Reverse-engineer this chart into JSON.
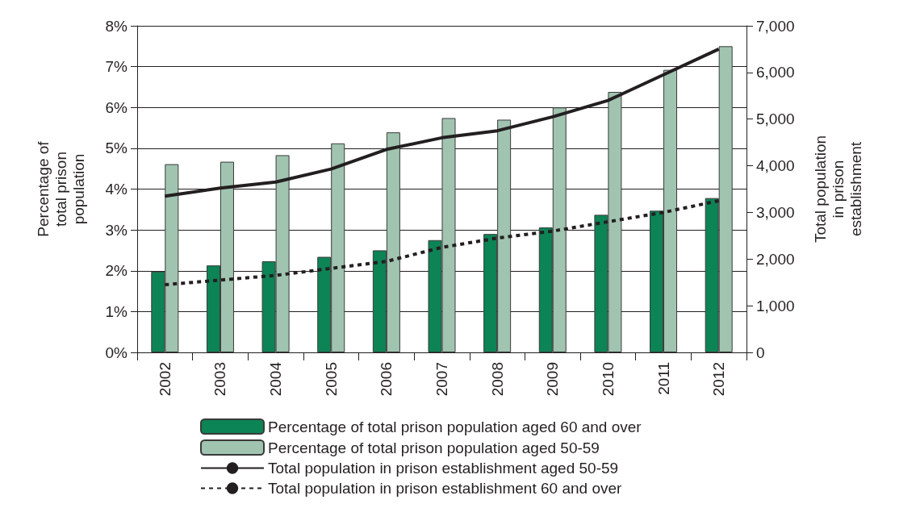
{
  "chart_data": {
    "type": "bar",
    "ylabel": "Percentage of total prison population",
    "y2label": "Total population in prison establishment",
    "categories": [
      "2002",
      "2003",
      "2004",
      "2005",
      "2006",
      "2007",
      "2008",
      "2009",
      "2010",
      "2011",
      "2012"
    ],
    "series": [
      {
        "name": "Percentage of total prison population aged 60 and over",
        "color": "#0d8456",
        "values": [
          1.98,
          2.13,
          2.23,
          2.34,
          2.5,
          2.75,
          2.9,
          3.06,
          3.37,
          3.47,
          3.78
        ]
      },
      {
        "name": "Percentage of total prison population aged 50-59",
        "color": "#a0c4b0",
        "values": [
          4.61,
          4.67,
          4.83,
          5.12,
          5.39,
          5.74,
          5.7,
          6.0,
          6.38,
          6.92,
          7.5
        ]
      },
      {
        "name": "Total population in prison establishment aged 50-59",
        "type": "line",
        "axis": "y2",
        "color": "#231f20",
        "line_style": "solid",
        "values": [
          3350,
          3520,
          3650,
          3930,
          4350,
          4600,
          4750,
          5050,
          5400,
          5950,
          6500
        ]
      },
      {
        "name": "Total population in prison establishment 60 and over",
        "type": "line",
        "axis": "y2",
        "color": "#231f20",
        "line_style": "dashed",
        "values": [
          1450,
          1550,
          1650,
          1800,
          1950,
          2250,
          2450,
          2600,
          2800,
          3000,
          3250
        ]
      }
    ],
    "ylim": [
      0,
      8
    ],
    "yticks": [
      {
        "value": 0,
        "label": "0%"
      },
      {
        "value": 1,
        "label": "1%"
      },
      {
        "value": 2,
        "label": "2%"
      },
      {
        "value": 3,
        "label": "3%"
      },
      {
        "value": 4,
        "label": "4%"
      },
      {
        "value": 5,
        "label": "5%"
      },
      {
        "value": 6,
        "label": "6%"
      },
      {
        "value": 7,
        "label": "7%"
      },
      {
        "value": 8,
        "label": "8%"
      }
    ],
    "y2lim": [
      0,
      7000
    ],
    "y2ticks": [
      {
        "value": 0,
        "label": "0"
      },
      {
        "value": 1000,
        "label": "1,000"
      },
      {
        "value": 2000,
        "label": "2,000"
      },
      {
        "value": 3000,
        "label": "3,000"
      },
      {
        "value": 4000,
        "label": "4,000"
      },
      {
        "value": 5000,
        "label": "5,000"
      },
      {
        "value": 6000,
        "label": "6,000"
      },
      {
        "value": 7000,
        "label": "7,000"
      }
    ],
    "grid": "y",
    "legend": "bottom",
    "marker": "none"
  }
}
